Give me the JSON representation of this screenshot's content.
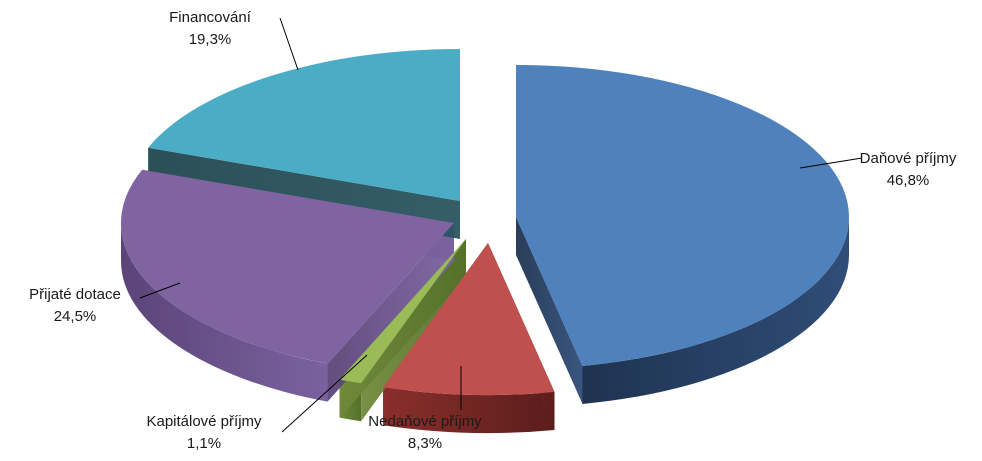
{
  "chart_data": {
    "type": "pie",
    "style": "3d-exploded",
    "title": "",
    "slices": [
      {
        "label": "Daňové příjmy",
        "value_label": "46,8%",
        "value": 46.8,
        "color": "#4F81BD"
      },
      {
        "label": "Nedaňové příjmy",
        "value_label": "8,3%",
        "value": 8.3,
        "color": "#C0504D"
      },
      {
        "label": "Kapitálové příjmy",
        "value_label": "1,1%",
        "value": 1.1,
        "color": "#9BBB59"
      },
      {
        "label": "Přijaté dotace",
        "value_label": "24,5%",
        "value": 24.5,
        "color": "#8064A2"
      },
      {
        "label": "Financování",
        "value_label": "19,3%",
        "value": 19.3,
        "color": "#4BACC6"
      }
    ],
    "legend": "none",
    "data_labels": "outside-with-leader-lines"
  }
}
